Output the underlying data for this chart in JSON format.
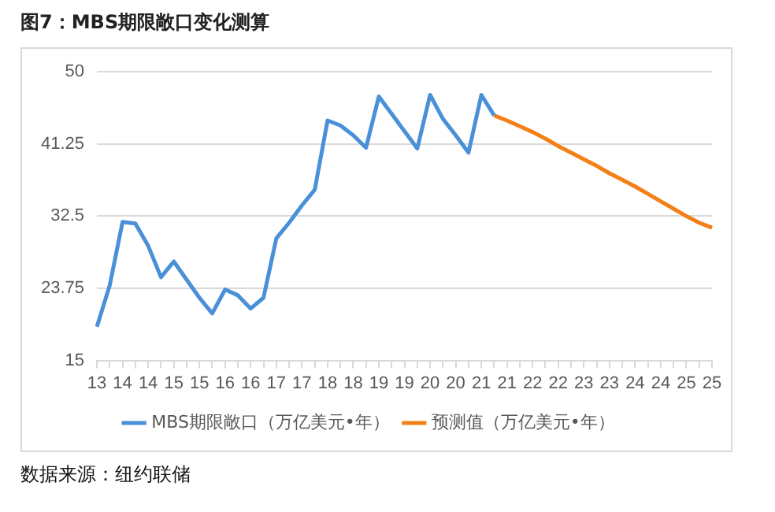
{
  "chart_data": {
    "type": "line",
    "title": "图7：MBS期限敞口变化测算",
    "categories": [
      "13",
      null,
      "14",
      null,
      "14",
      null,
      "15",
      null,
      "15",
      null,
      "16",
      null,
      "16",
      null,
      "17",
      null,
      "17",
      null,
      "18",
      null,
      "18",
      null,
      "19",
      null,
      "19",
      null,
      "20",
      null,
      "20",
      null,
      "21",
      null,
      "21",
      null,
      "22",
      null,
      "22",
      null,
      "23",
      null,
      "23",
      null,
      "24",
      null,
      "24",
      null,
      "25",
      null,
      "25"
    ],
    "series": [
      {
        "name": "MBS期限敞口（万亿美元•年）",
        "color": "#4a90d9",
        "values": [
          19.1,
          24.1,
          31.8,
          31.6,
          28.9,
          25.1,
          27.0,
          24.8,
          22.6,
          20.7,
          23.6,
          22.9,
          21.3,
          22.6,
          29.8,
          31.7,
          33.8,
          35.7,
          44.1,
          43.5,
          42.3,
          40.8,
          47.0,
          44.9,
          42.8,
          40.7,
          47.2,
          44.3,
          42.3,
          40.2,
          47.2,
          44.7,
          null,
          null,
          null,
          null,
          null,
          null,
          null,
          null,
          null,
          null,
          null,
          null,
          null,
          null,
          null,
          null,
          null
        ]
      },
      {
        "name": "预测值（万亿美元•年）",
        "color": "#f57f17",
        "values": [
          null,
          null,
          null,
          null,
          null,
          null,
          null,
          null,
          null,
          null,
          null,
          null,
          null,
          null,
          null,
          null,
          null,
          null,
          null,
          null,
          null,
          null,
          null,
          null,
          null,
          null,
          null,
          null,
          null,
          null,
          null,
          44.7,
          44.1,
          43.4,
          42.7,
          41.9,
          41.0,
          40.2,
          39.4,
          38.6,
          37.7,
          36.9,
          36.1,
          35.2,
          34.3,
          33.4,
          32.5,
          31.7,
          31.1
        ]
      }
    ],
    "ylim": [
      15,
      50
    ],
    "yticks": [
      15,
      23.75,
      32.5,
      41.25,
      50
    ],
    "grid": "y",
    "legend": "bottom",
    "marker": "none",
    "line_style": "solid",
    "annotations": [
      "数据来源：纽约联储"
    ]
  }
}
